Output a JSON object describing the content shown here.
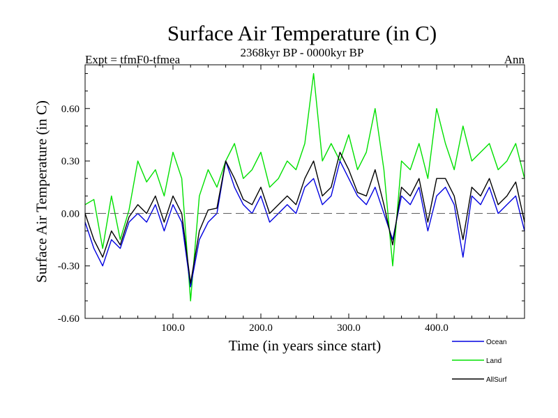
{
  "chart_data": {
    "type": "line",
    "title": "Surface Air Temperature (in C)",
    "subtitle": "2368kyr BP - 0000kyr BP",
    "left_label": "Expt = tfmF0-tfmea",
    "right_label": "Ann",
    "xlabel": "Time (in years since start)",
    "ylabel": "Surface Air Temperature (in C)",
    "xlim": [
      0,
      500
    ],
    "ylim": [
      -0.6,
      0.85
    ],
    "xticks": [
      100,
      200,
      300,
      400
    ],
    "xtick_labels": [
      "100.0",
      "200.0",
      "300.0",
      "400.0"
    ],
    "yticks": [
      -0.6,
      -0.3,
      0.0,
      0.3,
      0.6
    ],
    "ytick_labels": [
      "-0.60",
      "-0.30",
      "0.00",
      "0.30",
      "0.60"
    ],
    "zero_line": true,
    "legend_position": "bottom-right",
    "series": [
      {
        "name": "Land",
        "color": "#00e000",
        "x": [
          0,
          10,
          20,
          30,
          40,
          50,
          60,
          70,
          80,
          90,
          100,
          110,
          120,
          130,
          140,
          150,
          160,
          170,
          180,
          190,
          200,
          210,
          220,
          230,
          240,
          250,
          260,
          270,
          280,
          290,
          300,
          310,
          320,
          330,
          340,
          350,
          360,
          370,
          380,
          390,
          400,
          410,
          420,
          430,
          440,
          450,
          460,
          470,
          480,
          490,
          500
        ],
        "values": [
          0.05,
          0.08,
          -0.2,
          0.1,
          -0.15,
          0.02,
          0.3,
          0.18,
          0.25,
          0.1,
          0.35,
          0.2,
          -0.5,
          0.1,
          0.25,
          0.15,
          0.3,
          0.4,
          0.2,
          0.25,
          0.35,
          0.15,
          0.2,
          0.3,
          0.25,
          0.4,
          0.8,
          0.3,
          0.4,
          0.3,
          0.45,
          0.25,
          0.35,
          0.6,
          0.25,
          -0.3,
          0.3,
          0.25,
          0.4,
          0.2,
          0.6,
          0.4,
          0.25,
          0.5,
          0.3,
          0.35,
          0.4,
          0.25,
          0.3,
          0.4,
          0.2
        ]
      },
      {
        "name": "Ocean",
        "color": "#0000e0",
        "x": [
          0,
          10,
          20,
          30,
          40,
          50,
          60,
          70,
          80,
          90,
          100,
          110,
          120,
          130,
          140,
          150,
          160,
          170,
          180,
          190,
          200,
          210,
          220,
          230,
          240,
          250,
          260,
          270,
          280,
          290,
          300,
          310,
          320,
          330,
          340,
          350,
          360,
          370,
          380,
          390,
          400,
          410,
          420,
          430,
          440,
          450,
          460,
          470,
          480,
          490,
          500
        ],
        "values": [
          -0.05,
          -0.2,
          -0.3,
          -0.15,
          -0.2,
          -0.05,
          0.0,
          -0.05,
          0.05,
          -0.1,
          0.05,
          -0.05,
          -0.42,
          -0.15,
          -0.05,
          0.0,
          0.3,
          0.15,
          0.05,
          0.0,
          0.1,
          -0.05,
          0.0,
          0.05,
          0.0,
          0.15,
          0.2,
          0.05,
          0.1,
          0.3,
          0.2,
          0.1,
          0.05,
          0.15,
          0.0,
          -0.15,
          0.1,
          0.05,
          0.15,
          -0.1,
          0.1,
          0.15,
          0.05,
          -0.25,
          0.1,
          0.05,
          0.15,
          0.0,
          0.05,
          0.1,
          -0.1
        ]
      },
      {
        "name": "AllSurf",
        "color": "#000000",
        "x": [
          0,
          10,
          20,
          30,
          40,
          50,
          60,
          70,
          80,
          90,
          100,
          110,
          120,
          130,
          140,
          150,
          160,
          170,
          180,
          190,
          200,
          210,
          220,
          230,
          240,
          250,
          260,
          270,
          280,
          290,
          300,
          310,
          320,
          330,
          340,
          350,
          360,
          370,
          380,
          390,
          400,
          410,
          420,
          430,
          440,
          450,
          460,
          470,
          480,
          490,
          500
        ],
        "values": [
          0.0,
          -0.15,
          -0.25,
          -0.1,
          -0.18,
          -0.02,
          0.05,
          0.0,
          0.1,
          -0.05,
          0.1,
          0.0,
          -0.4,
          -0.1,
          0.02,
          0.03,
          0.3,
          0.2,
          0.08,
          0.05,
          0.15,
          0.0,
          0.05,
          0.1,
          0.05,
          0.2,
          0.3,
          0.1,
          0.15,
          0.35,
          0.25,
          0.12,
          0.1,
          0.25,
          0.05,
          -0.18,
          0.15,
          0.1,
          0.2,
          -0.05,
          0.2,
          0.2,
          0.1,
          -0.15,
          0.15,
          0.1,
          0.2,
          0.05,
          0.1,
          0.18,
          -0.05
        ]
      }
    ]
  }
}
